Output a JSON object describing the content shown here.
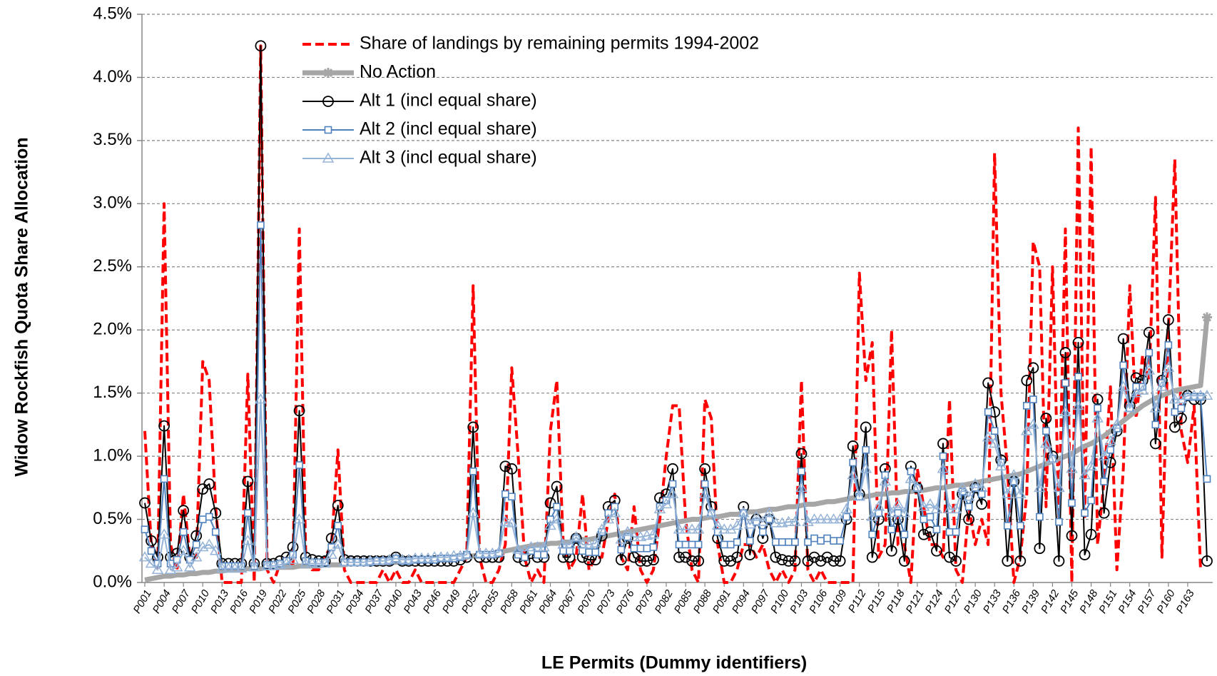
{
  "chart_data": {
    "type": "line",
    "y_label": "Widow Rockfish Quota Share Allocation",
    "x_label": "LE Permits (Dummy identifiers)",
    "categories": [
      "P001",
      null,
      null,
      "P004",
      null,
      null,
      "P007",
      null,
      null,
      "P010",
      null,
      null,
      "P013",
      null,
      null,
      "P016",
      null,
      null,
      "P019",
      null,
      null,
      "P022",
      null,
      null,
      "P025",
      null,
      null,
      "P028",
      null,
      null,
      "P031",
      null,
      null,
      "P034",
      null,
      null,
      "P037",
      null,
      null,
      "P040",
      null,
      null,
      "P043",
      null,
      null,
      "P046",
      null,
      null,
      "P049",
      null,
      null,
      "P052",
      null,
      null,
      "P055",
      null,
      null,
      "P058",
      null,
      null,
      "P061",
      null,
      null,
      "P064",
      null,
      null,
      "P067",
      null,
      null,
      "P070",
      null,
      null,
      "P073",
      null,
      null,
      "P076",
      null,
      null,
      "P079",
      null,
      null,
      "P082",
      null,
      null,
      "P085",
      null,
      null,
      "P088",
      null,
      null,
      "P091",
      null,
      null,
      "P094",
      null,
      null,
      "P097",
      null,
      null,
      "P100",
      null,
      null,
      "P103",
      null,
      null,
      "P106",
      null,
      null,
      "P109",
      null,
      null,
      "P112",
      null,
      null,
      "P115",
      null,
      null,
      "P118",
      null,
      null,
      "P121",
      null,
      null,
      "P124",
      null,
      null,
      "P127",
      null,
      null,
      "P130",
      null,
      null,
      "P133",
      null,
      null,
      "P136",
      null,
      null,
      "P139",
      null,
      null,
      "P142",
      null,
      null,
      "P145",
      null,
      null,
      "P148",
      null,
      null,
      "P151",
      null,
      null,
      "P154",
      null,
      null,
      "P157",
      null,
      null,
      "P160",
      null,
      null,
      "P163",
      null,
      null,
      null
    ],
    "ylim": [
      0,
      4.5
    ],
    "yticks": [
      {
        "value": 0,
        "label": "0.0%"
      },
      {
        "value": 0.5,
        "label": "0.5%"
      },
      {
        "value": 1,
        "label": "1.0%"
      },
      {
        "value": 1.5,
        "label": "1.5%"
      },
      {
        "value": 2,
        "label": "2.0%"
      },
      {
        "value": 2.5,
        "label": "2.5%"
      },
      {
        "value": 3,
        "label": "3.0%"
      },
      {
        "value": 3.5,
        "label": "3.5%"
      },
      {
        "value": 4,
        "label": "4.0%"
      },
      {
        "value": 4.5,
        "label": "4.5%"
      }
    ],
    "grid": true,
    "legend_position": "upper-left",
    "series": [
      {
        "name": "Share of landings by remaining permits 1994-2002",
        "color": "#ff0000",
        "line_style": "dashed",
        "line_width": 4,
        "marker": "none",
        "values": [
          1.2,
          0.3,
          0.1,
          3.0,
          0.3,
          0.1,
          0.7,
          0.2,
          0.2,
          1.75,
          1.6,
          0.6,
          0,
          0,
          0,
          0,
          1.65,
          0,
          4.25,
          0.1,
          0,
          0.15,
          0.2,
          0.1,
          2.8,
          0.2,
          0.1,
          0.1,
          0.2,
          0.3,
          1.05,
          0.1,
          0,
          0,
          0,
          0,
          0,
          0.1,
          0,
          0.1,
          0,
          0,
          0.1,
          0,
          0,
          0,
          0,
          0,
          0,
          0.1,
          0.2,
          2.35,
          0.2,
          0,
          0,
          0.1,
          0.3,
          1.7,
          1.0,
          0.2,
          0,
          0.1,
          0,
          1.2,
          1.6,
          0.3,
          0.1,
          0.2,
          0.7,
          0.1,
          0.2,
          0.2,
          0.5,
          0.7,
          0.2,
          0.1,
          0.6,
          0.1,
          0,
          0.1,
          0.5,
          1.0,
          1.4,
          1.4,
          0.5,
          0.1,
          0,
          1.45,
          1.3,
          0.3,
          0,
          0,
          0.1,
          0.3,
          0.3,
          0.2,
          0.3,
          0.1,
          0,
          0.1,
          0,
          0.1,
          1.6,
          0.1,
          0,
          0.1,
          0,
          0,
          0,
          0,
          0,
          2.45,
          1.6,
          1.9,
          0.2,
          0.3,
          2.0,
          0.3,
          0.3,
          0,
          0.9,
          0.6,
          0.3,
          0.3,
          0.2,
          1.45,
          0.1,
          0,
          0.6,
          0.3,
          0.5,
          0.3,
          3.4,
          1.5,
          0.9,
          0,
          0.2,
          0.7,
          2.7,
          2.5,
          0.6,
          2.5,
          0.5,
          2.8,
          0,
          3.6,
          0.5,
          3.45,
          0.3,
          0.8,
          1.55,
          0.1,
          0.9,
          2.35,
          1.3,
          1.8,
          1.6,
          3.05,
          0.2,
          2.0,
          3.35,
          1.2,
          0.95,
          1.4,
          0.1,
          null
        ]
      },
      {
        "name": "No Action",
        "color": "#a6a6a6",
        "line_style": "solid",
        "line_width": 7,
        "marker": "star",
        "values": [
          0.02,
          0.03,
          0.04,
          0.05,
          0.05,
          0.06,
          0.06,
          0.07,
          0.07,
          0.08,
          0.08,
          0.09,
          0.09,
          0.1,
          0.1,
          0.1,
          0.11,
          0.11,
          0.11,
          0.12,
          0.12,
          0.12,
          0.12,
          0.12,
          0.13,
          0.13,
          0.13,
          0.13,
          0.14,
          0.14,
          0.14,
          0.14,
          0.15,
          0.15,
          0.15,
          0.15,
          0.16,
          0.16,
          0.16,
          0.16,
          0.17,
          0.17,
          0.17,
          0.18,
          0.18,
          0.18,
          0.19,
          0.19,
          0.2,
          0.2,
          0.2,
          0.21,
          0.22,
          0.22,
          0.23,
          0.24,
          0.25,
          0.26,
          0.27,
          0.28,
          0.29,
          0.3,
          0.3,
          0.31,
          0.31,
          0.32,
          0.32,
          0.33,
          0.34,
          0.34,
          0.35,
          0.36,
          0.37,
          0.38,
          0.39,
          0.4,
          0.41,
          0.42,
          0.43,
          0.44,
          0.45,
          0.46,
          0.47,
          0.48,
          0.49,
          0.5,
          0.5,
          0.51,
          0.52,
          0.52,
          0.53,
          0.54,
          0.54,
          0.55,
          0.56,
          0.56,
          0.57,
          0.58,
          0.58,
          0.59,
          0.6,
          0.6,
          0.61,
          0.62,
          0.62,
          0.63,
          0.64,
          0.64,
          0.65,
          0.66,
          0.67,
          0.68,
          0.68,
          0.69,
          0.7,
          0.7,
          0.71,
          0.71,
          0.72,
          0.72,
          0.73,
          0.73,
          0.74,
          0.75,
          0.75,
          0.76,
          0.77,
          0.77,
          0.78,
          0.79,
          0.8,
          0.81,
          0.82,
          0.83,
          0.84,
          0.85,
          0.86,
          0.88,
          0.9,
          0.92,
          0.94,
          0.96,
          0.98,
          1.0,
          1.02,
          1.05,
          1.08,
          1.1,
          1.13,
          1.16,
          1.2,
          1.24,
          1.28,
          1.32,
          1.36,
          1.4,
          1.43,
          1.46,
          1.48,
          1.5,
          1.52,
          1.53,
          1.54,
          1.55,
          1.56,
          2.1
        ]
      },
      {
        "name": "Alt 1 (incl equal share)",
        "color": "#000000",
        "line_style": "solid",
        "line_width": 2,
        "marker": "circle",
        "values": [
          0.63,
          0.33,
          0.2,
          1.24,
          0.2,
          0.23,
          0.57,
          0.2,
          0.37,
          0.74,
          0.78,
          0.55,
          0.15,
          0.15,
          0.15,
          0.15,
          0.8,
          0.15,
          4.25,
          0.15,
          0.15,
          0.17,
          0.2,
          0.28,
          1.36,
          0.2,
          0.18,
          0.17,
          0.17,
          0.35,
          0.61,
          0.18,
          0.17,
          0.17,
          0.17,
          0.17,
          0.17,
          0.17,
          0.17,
          0.2,
          0.17,
          0.17,
          0.17,
          0.17,
          0.17,
          0.17,
          0.17,
          0.17,
          0.17,
          0.18,
          0.2,
          1.23,
          0.2,
          0.2,
          0.2,
          0.2,
          0.92,
          0.9,
          0.2,
          0.17,
          0.23,
          0.2,
          0.2,
          0.63,
          0.76,
          0.2,
          0.2,
          0.35,
          0.2,
          0.18,
          0.18,
          0.37,
          0.6,
          0.65,
          0.18,
          0.35,
          0.2,
          0.17,
          0.17,
          0.18,
          0.67,
          0.7,
          0.9,
          0.2,
          0.2,
          0.17,
          0.17,
          0.9,
          0.6,
          0.35,
          0.17,
          0.17,
          0.2,
          0.6,
          0.22,
          0.5,
          0.35,
          0.5,
          0.2,
          0.18,
          0.17,
          0.17,
          1.02,
          0.17,
          0.2,
          0.17,
          0.2,
          0.17,
          0.17,
          0.5,
          1.08,
          0.7,
          1.23,
          0.2,
          0.5,
          0.9,
          0.25,
          0.5,
          0.17,
          0.92,
          0.75,
          0.38,
          0.4,
          0.25,
          1.1,
          0.2,
          0.17,
          0.7,
          0.5,
          0.75,
          0.62,
          1.58,
          1.35,
          0.97,
          0.17,
          0.8,
          0.17,
          1.6,
          1.7,
          0.27,
          1.3,
          1.0,
          0.17,
          1.82,
          0.37,
          1.9,
          0.22,
          0.38,
          1.45,
          0.55,
          0.95,
          1.2,
          1.93,
          1.4,
          1.62,
          1.6,
          1.98,
          1.1,
          1.6,
          2.08,
          1.23,
          1.3,
          1.48,
          1.45,
          1.45,
          0.17
        ]
      },
      {
        "name": "Alt 2 (incl equal share)",
        "color": "#4f81bd",
        "line_style": "solid",
        "line_width": 2,
        "marker": "square",
        "values": [
          0.42,
          0.25,
          0.15,
          0.82,
          0.15,
          0.18,
          0.4,
          0.18,
          0.3,
          0.5,
          0.52,
          0.4,
          0.13,
          0.13,
          0.13,
          0.13,
          0.55,
          0.13,
          2.83,
          0.14,
          0.14,
          0.15,
          0.17,
          0.22,
          0.93,
          0.17,
          0.16,
          0.16,
          0.16,
          0.28,
          0.45,
          0.16,
          0.16,
          0.16,
          0.16,
          0.16,
          0.17,
          0.17,
          0.17,
          0.19,
          0.17,
          0.17,
          0.18,
          0.18,
          0.18,
          0.18,
          0.19,
          0.19,
          0.19,
          0.2,
          0.22,
          0.88,
          0.22,
          0.22,
          0.22,
          0.23,
          0.7,
          0.68,
          0.22,
          0.2,
          0.25,
          0.22,
          0.22,
          0.5,
          0.6,
          0.25,
          0.25,
          0.35,
          0.25,
          0.24,
          0.24,
          0.4,
          0.55,
          0.6,
          0.26,
          0.36,
          0.27,
          0.27,
          0.27,
          0.28,
          0.6,
          0.65,
          0.78,
          0.3,
          0.3,
          0.3,
          0.3,
          0.78,
          0.55,
          0.4,
          0.3,
          0.3,
          0.32,
          0.55,
          0.33,
          0.48,
          0.4,
          0.5,
          0.32,
          0.32,
          0.32,
          0.32,
          0.88,
          0.32,
          0.35,
          0.33,
          0.35,
          0.33,
          0.33,
          0.52,
          0.95,
          0.68,
          1.05,
          0.38,
          0.55,
          0.85,
          0.42,
          0.55,
          0.38,
          0.88,
          0.75,
          0.5,
          0.52,
          0.42,
          1.0,
          0.4,
          0.4,
          0.72,
          0.6,
          0.75,
          0.7,
          1.35,
          1.2,
          0.95,
          0.45,
          0.8,
          0.45,
          1.4,
          1.45,
          0.52,
          1.2,
          0.98,
          0.48,
          1.58,
          0.63,
          1.63,
          0.55,
          0.65,
          1.38,
          0.8,
          1.05,
          1.22,
          1.72,
          1.38,
          1.55,
          1.55,
          1.82,
          1.25,
          1.58,
          1.88,
          1.35,
          1.38,
          1.47,
          1.47,
          1.47,
          0.82
        ]
      },
      {
        "name": "Alt 3 (incl equal share)",
        "color": "#95b3d7",
        "line_style": "solid",
        "line_width": 2,
        "marker": "triangle",
        "values": [
          0.2,
          0.15,
          0.1,
          0.38,
          0.1,
          0.12,
          0.25,
          0.12,
          0.2,
          0.28,
          0.3,
          0.25,
          0.11,
          0.11,
          0.11,
          0.11,
          0.33,
          0.12,
          1.45,
          0.13,
          0.13,
          0.14,
          0.15,
          0.18,
          0.5,
          0.15,
          0.15,
          0.15,
          0.15,
          0.22,
          0.3,
          0.16,
          0.16,
          0.16,
          0.16,
          0.17,
          0.17,
          0.17,
          0.18,
          0.19,
          0.18,
          0.18,
          0.19,
          0.19,
          0.19,
          0.2,
          0.2,
          0.2,
          0.21,
          0.21,
          0.22,
          0.55,
          0.23,
          0.23,
          0.23,
          0.24,
          0.48,
          0.47,
          0.26,
          0.25,
          0.28,
          0.28,
          0.28,
          0.45,
          0.5,
          0.3,
          0.3,
          0.36,
          0.3,
          0.3,
          0.31,
          0.42,
          0.5,
          0.55,
          0.34,
          0.4,
          0.36,
          0.36,
          0.37,
          0.38,
          0.58,
          0.62,
          0.7,
          0.42,
          0.42,
          0.42,
          0.42,
          0.7,
          0.55,
          0.45,
          0.42,
          0.42,
          0.45,
          0.55,
          0.46,
          0.52,
          0.48,
          0.55,
          0.47,
          0.47,
          0.48,
          0.48,
          0.75,
          0.48,
          0.5,
          0.5,
          0.5,
          0.5,
          0.5,
          0.58,
          0.85,
          0.68,
          0.9,
          0.52,
          0.6,
          0.8,
          0.55,
          0.62,
          0.55,
          0.82,
          0.75,
          0.6,
          0.62,
          0.58,
          0.9,
          0.58,
          0.58,
          0.75,
          0.68,
          0.78,
          0.75,
          1.15,
          1.1,
          0.92,
          0.7,
          0.85,
          0.7,
          1.2,
          1.25,
          0.75,
          1.1,
          0.98,
          0.75,
          1.35,
          0.9,
          1.4,
          0.85,
          0.92,
          1.3,
          1.0,
          1.12,
          1.25,
          1.55,
          1.38,
          1.5,
          1.52,
          1.68,
          1.38,
          1.55,
          1.7,
          1.45,
          1.45,
          1.48,
          1.48,
          1.48,
          1.48
        ]
      }
    ]
  }
}
